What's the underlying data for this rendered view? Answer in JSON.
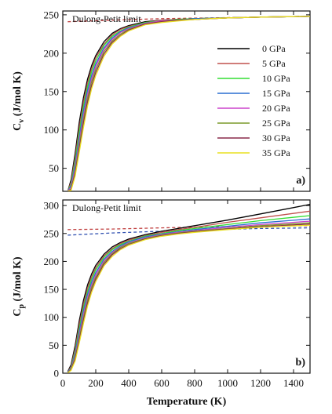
{
  "chart_data": [
    {
      "type": "line",
      "panel_label": "a)",
      "ylabel_main": "C",
      "ylabel_sub": "v",
      "ylabel_rest": " (J/mol K)",
      "xlim": [
        0,
        1500
      ],
      "ylim": [
        20,
        255
      ],
      "yticks": [
        50,
        100,
        150,
        200,
        250
      ],
      "xticks": [
        0,
        200,
        400,
        600,
        800,
        1000,
        1200,
        1400
      ],
      "show_x_tick_labels": false,
      "annotation": "Dulong-Petit limit",
      "reference_line": {
        "style": "dashed",
        "color": "#c04040",
        "x": [
          30,
          300,
          600,
          900,
          1200,
          1500
        ],
        "y": [
          241,
          243,
          245,
          246,
          247,
          248
        ]
      },
      "legend": {
        "placement": "right"
      },
      "x": [
        30,
        50,
        75,
        100,
        125,
        150,
        175,
        200,
        250,
        300,
        350,
        400,
        500,
        600,
        700,
        800,
        1000,
        1200,
        1500
      ],
      "series": [
        {
          "name": "0 GPa",
          "color": "#000000",
          "values": [
            20,
            35,
            70,
            110,
            142,
            166,
            184,
            197,
            215,
            226,
            232,
            236,
            241,
            243,
            244,
            245,
            246,
            247,
            248
          ]
        },
        {
          "name": "5 GPa",
          "color": "#c0504d",
          "values": [
            20,
            32,
            64,
            103,
            136,
            161,
            180,
            194,
            212,
            224,
            231,
            235,
            240,
            243,
            244,
            245,
            246,
            247,
            248
          ]
        },
        {
          "name": "10 GPa",
          "color": "#33dd33",
          "values": [
            20,
            29,
            59,
            97,
            130,
            156,
            176,
            190,
            210,
            222,
            229,
            234,
            240,
            242,
            244,
            245,
            246,
            247,
            248
          ]
        },
        {
          "name": "15 GPa",
          "color": "#2a6fd0",
          "values": [
            20,
            27,
            54,
            90,
            124,
            151,
            171,
            186,
            207,
            220,
            228,
            233,
            239,
            242,
            243,
            245,
            246,
            247,
            248
          ]
        },
        {
          "name": "20 GPa",
          "color": "#cc44cc",
          "values": [
            20,
            25,
            50,
            85,
            118,
            146,
            167,
            183,
            205,
            218,
            227,
            232,
            239,
            242,
            243,
            244,
            246,
            247,
            248
          ]
        },
        {
          "name": "25 GPa",
          "color": "#7a9a2a",
          "values": [
            20,
            23,
            46,
            80,
            113,
            141,
            163,
            179,
            202,
            216,
            225,
            231,
            238,
            241,
            243,
            244,
            246,
            247,
            248
          ]
        },
        {
          "name": "30 GPa",
          "color": "#8a2a4a",
          "values": [
            20,
            22,
            43,
            75,
            108,
            136,
            158,
            175,
            199,
            214,
            223,
            230,
            238,
            241,
            243,
            244,
            246,
            247,
            248
          ]
        },
        {
          "name": "35 GPa",
          "color": "#e8e020",
          "values": [
            20,
            21,
            40,
            71,
            103,
            131,
            154,
            171,
            196,
            212,
            222,
            229,
            237,
            240,
            242,
            244,
            246,
            247,
            248
          ]
        }
      ]
    },
    {
      "type": "line",
      "panel_label": "b)",
      "ylabel_main": "C",
      "ylabel_sub": "p",
      "ylabel_rest": " (J/mol K)",
      "xlabel": "Temperature (K)",
      "xlim": [
        0,
        1500
      ],
      "ylim": [
        0,
        310
      ],
      "yticks": [
        0,
        50,
        100,
        150,
        200,
        250,
        300
      ],
      "xticks": [
        0,
        200,
        400,
        600,
        800,
        1000,
        1200,
        1400
      ],
      "show_x_tick_labels": true,
      "annotation": "Dulong-Petit limit",
      "reference_lines": [
        {
          "style": "dashed",
          "color": "#c04040",
          "x": [
            30,
            300,
            600,
            900,
            1200,
            1500
          ],
          "y": [
            257,
            258,
            260,
            262,
            263,
            264
          ]
        },
        {
          "style": "dashed",
          "color": "#3050b0",
          "x": [
            30,
            300,
            600,
            900,
            1200,
            1500
          ],
          "y": [
            247,
            251,
            254,
            257,
            259,
            260
          ]
        }
      ],
      "x": [
        30,
        50,
        75,
        100,
        125,
        150,
        175,
        200,
        250,
        300,
        350,
        400,
        500,
        600,
        700,
        800,
        1000,
        1200,
        1500
      ],
      "series": [
        {
          "name": "0 GPa",
          "color": "#000000",
          "values": [
            3,
            15,
            50,
            94,
            130,
            158,
            178,
            193,
            213,
            226,
            234,
            240,
            248,
            254,
            259,
            264,
            274,
            285,
            302
          ]
        },
        {
          "name": "5 GPa",
          "color": "#c0504d",
          "values": [
            2,
            12,
            44,
            87,
            123,
            152,
            173,
            189,
            210,
            223,
            232,
            238,
            246,
            252,
            257,
            261,
            270,
            278,
            290
          ]
        },
        {
          "name": "10 GPa",
          "color": "#33dd33",
          "values": [
            2,
            10,
            39,
            80,
            117,
            146,
            168,
            185,
            207,
            221,
            230,
            236,
            245,
            250,
            255,
            259,
            266,
            273,
            282
          ]
        },
        {
          "name": "15 GPa",
          "color": "#2a6fd0",
          "values": [
            2,
            9,
            35,
            74,
            111,
            141,
            163,
            180,
            204,
            218,
            228,
            235,
            244,
            249,
            253,
            257,
            263,
            269,
            276
          ]
        },
        {
          "name": "20 GPa",
          "color": "#cc44cc",
          "values": [
            1,
            8,
            31,
            68,
            105,
            135,
            158,
            176,
            201,
            216,
            226,
            233,
            242,
            248,
            252,
            255,
            261,
            266,
            272
          ]
        },
        {
          "name": "25 GPa",
          "color": "#7a9a2a",
          "values": [
            1,
            7,
            28,
            63,
            99,
            130,
            154,
            172,
            198,
            214,
            225,
            232,
            241,
            247,
            251,
            254,
            259,
            264,
            269
          ]
        },
        {
          "name": "30 GPa",
          "color": "#8a2a4a",
          "values": [
            1,
            6,
            25,
            58,
            94,
            125,
            149,
            168,
            195,
            212,
            223,
            230,
            240,
            246,
            250,
            253,
            258,
            262,
            267
          ]
        },
        {
          "name": "35 GPa",
          "color": "#e8e020",
          "values": [
            1,
            5,
            22,
            54,
            89,
            120,
            145,
            164,
            192,
            209,
            221,
            229,
            239,
            245,
            249,
            252,
            257,
            261,
            265
          ]
        }
      ]
    }
  ]
}
